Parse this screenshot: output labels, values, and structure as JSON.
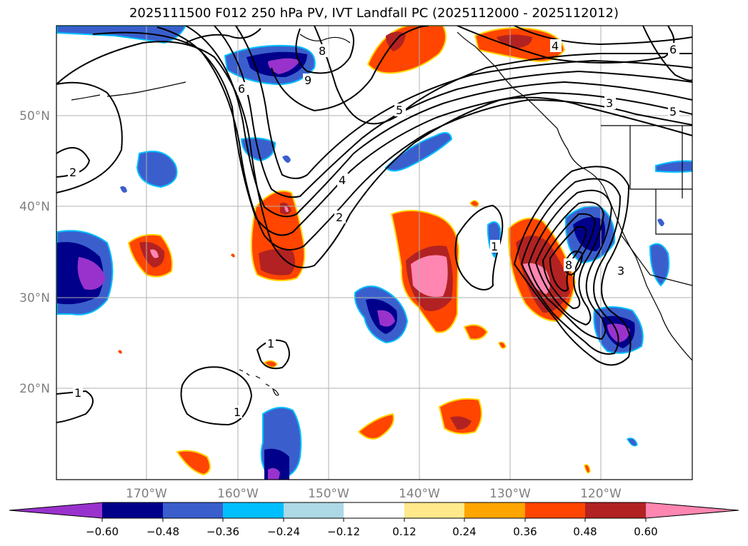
{
  "title": "2025111500 F012 250 hPa PV, IVT Landfall PC (2025112000 - 2025112012)",
  "lon_labels": [
    "170°W",
    "160°W",
    "150°W",
    "140°W",
    "130°W",
    "120°W"
  ],
  "lat_labels": [
    "50°N",
    "40°N",
    "30°N",
    "20°N"
  ],
  "colorbar": {
    "ticks": [
      "−0.60",
      "−0.48",
      "−0.36",
      "−0.24",
      "−0.12",
      "0.12",
      "0.24",
      "0.36",
      "0.48",
      "0.60"
    ],
    "colors": [
      "#9932CC",
      "#00008B",
      "#3A5FCD",
      "#00BFFF",
      "#ADD8E6",
      "#FFFFFF",
      "#FFE98A",
      "#FFA500",
      "#FF4500",
      "#B22222",
      "#FF86B0"
    ]
  },
  "contour_labels": [
    "1",
    "1",
    "1",
    "1",
    "2",
    "2",
    "3",
    "3",
    "4",
    "4",
    "5",
    "5",
    "6",
    "6",
    "8",
    "8",
    "9"
  ]
}
